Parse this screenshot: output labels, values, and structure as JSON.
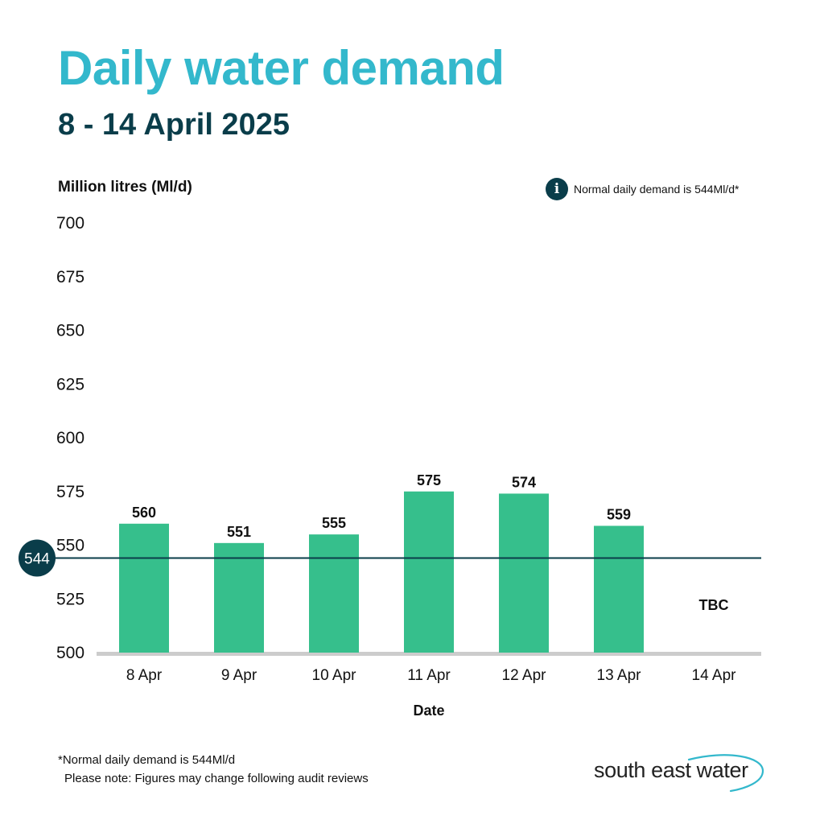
{
  "header": {
    "title": "Daily water demand",
    "subtitle": "8 - 14 April 2025"
  },
  "legend": {
    "info_icon": "info-icon",
    "note": "Normal daily demand is 544Ml/d*"
  },
  "colors": {
    "bar": "#36bf8c",
    "baseline": "#0a3d4a",
    "title": "#33b8cc",
    "axis_base": "#cccccc"
  },
  "chart_data": {
    "type": "bar",
    "title": "Daily water demand",
    "subtitle": "8 - 14 April 2025",
    "ylabel": "Million litres (Ml/d)",
    "xlabel": "Date",
    "ylim": [
      500,
      700
    ],
    "yticks": [
      700,
      675,
      650,
      625,
      600,
      575,
      550,
      525,
      500
    ],
    "categories": [
      "8 Apr",
      "9 Apr",
      "10 Apr",
      "11 Apr",
      "12 Apr",
      "13 Apr",
      "14 Apr"
    ],
    "values": [
      560,
      551,
      555,
      575,
      574,
      559,
      null
    ],
    "value_labels": [
      "560",
      "551",
      "555",
      "575",
      "574",
      "559",
      "TBC"
    ],
    "reference_line": {
      "value": 544,
      "label": "544"
    },
    "grid": false
  },
  "footnote": {
    "line1": "*Normal daily demand is 544Ml/d",
    "line2": "Please note: Figures may change following audit reviews"
  },
  "logo": {
    "text": "south east water"
  }
}
